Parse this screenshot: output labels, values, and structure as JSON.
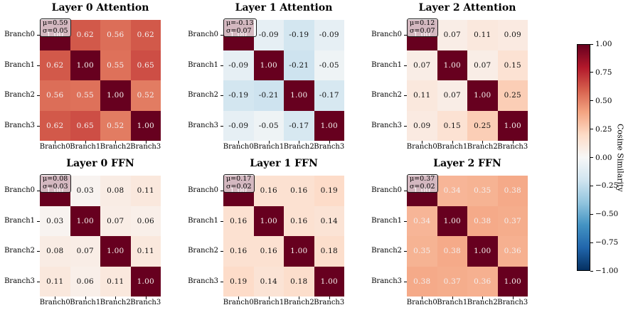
{
  "figure": {
    "background": "#ffffff",
    "text_color": "#000000",
    "colormap_name": "RdBu_r",
    "colormap_stops": [
      "#053061",
      "#2166ac",
      "#4393c3",
      "#92c5de",
      "#d1e5f0",
      "#f7f7f7",
      "#fddbc7",
      "#f4a582",
      "#d6604d",
      "#b2182b",
      "#67001f"
    ],
    "vmin": -1,
    "vmax": 1,
    "white_text_threshold": 0.3
  },
  "chart_data": [
    {
      "type": "heatmap",
      "title": "Layer 0 Attention",
      "categories": [
        "Branch0",
        "Branch1",
        "Branch2",
        "Branch3"
      ],
      "values": [
        [
          1.0,
          0.62,
          0.56,
          0.62
        ],
        [
          0.62,
          1.0,
          0.55,
          0.65
        ],
        [
          0.56,
          0.55,
          1.0,
          0.52
        ],
        [
          0.62,
          0.65,
          0.52,
          1.0
        ]
      ],
      "annotation": [
        "μ=0.59",
        "σ=0.05"
      ]
    },
    {
      "type": "heatmap",
      "title": "Layer 1 Attention",
      "categories": [
        "Branch0",
        "Branch1",
        "Branch2",
        "Branch3"
      ],
      "values": [
        [
          1.0,
          -0.09,
          -0.19,
          -0.09
        ],
        [
          -0.09,
          1.0,
          -0.21,
          -0.05
        ],
        [
          -0.19,
          -0.21,
          1.0,
          -0.17
        ],
        [
          -0.09,
          -0.05,
          -0.17,
          1.0
        ]
      ],
      "annotation": [
        "μ=-0.13",
        "σ=0.07"
      ]
    },
    {
      "type": "heatmap",
      "title": "Layer 2 Attention",
      "categories": [
        "Branch0",
        "Branch1",
        "Branch2",
        "Branch3"
      ],
      "values": [
        [
          1.0,
          0.07,
          0.11,
          0.09
        ],
        [
          0.07,
          1.0,
          0.07,
          0.15
        ],
        [
          0.11,
          0.07,
          1.0,
          0.25
        ],
        [
          0.09,
          0.15,
          0.25,
          1.0
        ]
      ],
      "annotation": [
        "μ=0.12",
        "σ=0.07"
      ]
    },
    {
      "type": "heatmap",
      "title": "Layer 0 FFN",
      "categories": [
        "Branch0",
        "Branch1",
        "Branch2",
        "Branch3"
      ],
      "values": [
        [
          1.0,
          0.03,
          0.08,
          0.11
        ],
        [
          0.03,
          1.0,
          0.07,
          0.06
        ],
        [
          0.08,
          0.07,
          1.0,
          0.11
        ],
        [
          0.11,
          0.06,
          0.11,
          1.0
        ]
      ],
      "annotation": [
        "μ=0.08",
        "σ=0.03"
      ]
    },
    {
      "type": "heatmap",
      "title": "Layer 1 FFN",
      "categories": [
        "Branch0",
        "Branch1",
        "Branch2",
        "Branch3"
      ],
      "values": [
        [
          1.0,
          0.16,
          0.16,
          0.19
        ],
        [
          0.16,
          1.0,
          0.16,
          0.14
        ],
        [
          0.16,
          0.16,
          1.0,
          0.18
        ],
        [
          0.19,
          0.14,
          0.18,
          1.0
        ]
      ],
      "annotation": [
        "μ=0.17",
        "σ=0.02"
      ]
    },
    {
      "type": "heatmap",
      "title": "Layer 2 FFN",
      "categories": [
        "Branch0",
        "Branch1",
        "Branch2",
        "Branch3"
      ],
      "values": [
        [
          1.0,
          0.34,
          0.35,
          0.38
        ],
        [
          0.34,
          1.0,
          0.38,
          0.37
        ],
        [
          0.35,
          0.38,
          1.0,
          0.36
        ],
        [
          0.38,
          0.37,
          0.36,
          1.0
        ]
      ],
      "annotation": [
        "μ=0.37",
        "σ=0.02"
      ]
    }
  ],
  "colorbar": {
    "label": "Cosine Similarity",
    "ticks": [
      1.0,
      0.75,
      0.5,
      0.25,
      0.0,
      -0.25,
      -0.5,
      -0.75,
      -1.0
    ]
  }
}
